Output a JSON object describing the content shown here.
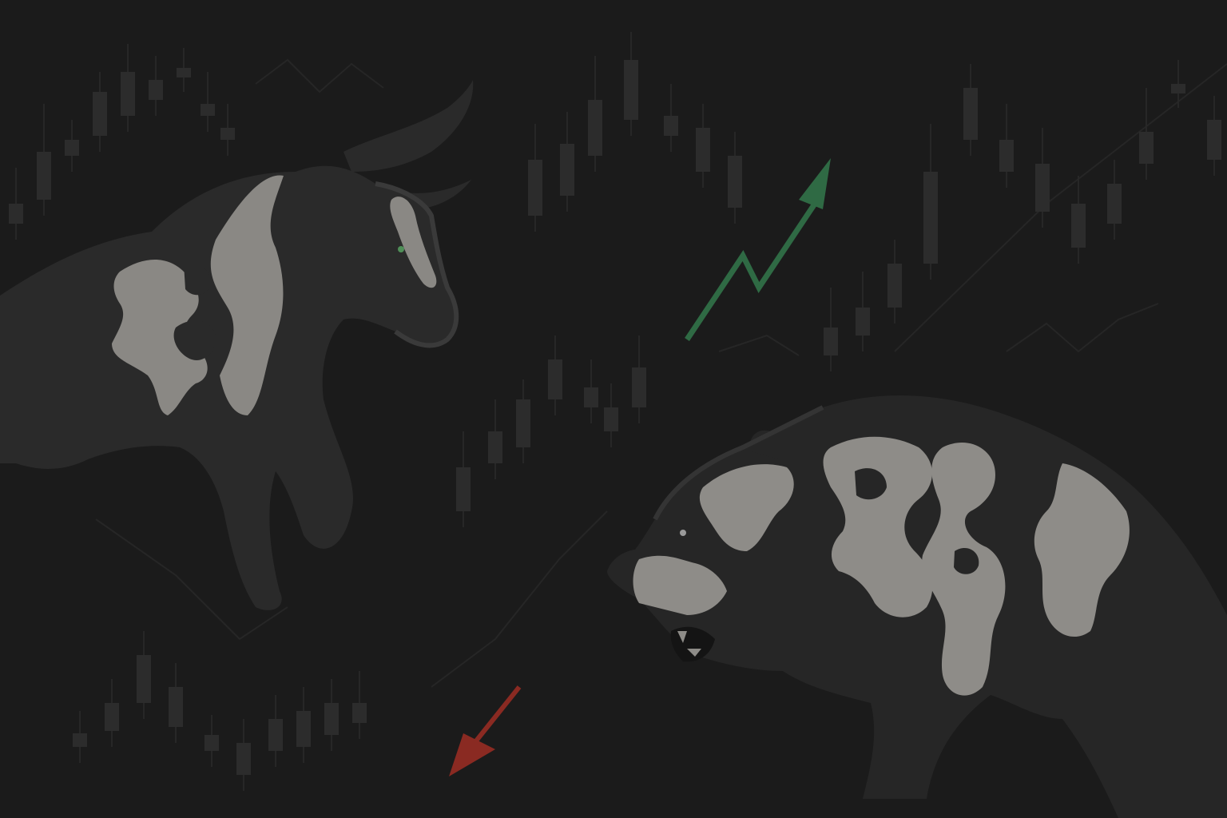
{
  "scene": {
    "subject": "bull-vs-bear",
    "colors": {
      "background": "#1b1b1b",
      "candle": "#2c2c2c",
      "candle_wick": "#272727",
      "trendline": "#262626",
      "bull_body": "#2a2a2a",
      "bull_outline": "#3a3a3a",
      "bull_patch": "#8a8884",
      "bull_eye": "#4f8f58",
      "bear_body": "#262626",
      "bear_outline": "#343434",
      "bear_patch": "#8e8c88",
      "arrow_up": "#2f6a44",
      "arrow_down": "#8a2a22"
    },
    "icons": [
      "bull-icon",
      "bear-icon",
      "arrow-up-icon",
      "arrow-down-icon"
    ]
  }
}
